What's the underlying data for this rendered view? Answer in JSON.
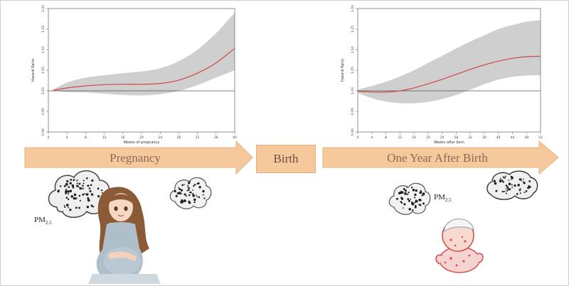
{
  "chart_data": [
    {
      "type": "line",
      "xlabel": "Weeks of pregnancy",
      "ylabel": "Hazard Ratio",
      "xlim": [
        0,
        40
      ],
      "ylim": [
        0.9,
        1.2
      ],
      "x_ticks": [
        "0",
        "4",
        "8",
        "12",
        "16",
        "20",
        "24",
        "28",
        "32",
        "36",
        "40"
      ],
      "y_ticks": [
        "0.90",
        "0.95",
        "1.00",
        "1.05",
        "1.10",
        "1.15",
        "1.20"
      ],
      "reference_line": 1.0,
      "grid": false,
      "line_color": "#d04848",
      "band_color": "#cfcfcf",
      "series": [
        {
          "x": [
            1,
            4,
            8,
            12,
            16,
            20,
            24,
            28,
            32,
            36,
            40
          ],
          "y": [
            1.001,
            1.007,
            1.012,
            1.015,
            1.016,
            1.016,
            1.018,
            1.026,
            1.043,
            1.068,
            1.103
          ],
          "lower": [
            1.0,
            0.997,
            0.996,
            0.993,
            0.99,
            0.989,
            0.992,
            1.0,
            1.014,
            1.032,
            1.05
          ],
          "upper": [
            1.003,
            1.02,
            1.032,
            1.038,
            1.043,
            1.047,
            1.055,
            1.072,
            1.1,
            1.14,
            1.19
          ]
        }
      ]
    },
    {
      "type": "line",
      "xlabel": "Weeks after born",
      "ylabel": "Hazard Ratio",
      "xlim": [
        0,
        52
      ],
      "ylim": [
        0.9,
        1.2
      ],
      "x_ticks": [
        "0",
        "4",
        "8",
        "12",
        "16",
        "20",
        "24",
        "28",
        "32",
        "36",
        "40",
        "44",
        "48",
        "52"
      ],
      "y_ticks": [
        "0.90",
        "0.95",
        "1.00",
        "1.05",
        "1.10",
        "1.15",
        "1.20"
      ],
      "reference_line": 1.0,
      "grid": false,
      "line_color": "#d04848",
      "band_color": "#cfcfcf",
      "series": [
        {
          "x": [
            0,
            4,
            8,
            12,
            16,
            20,
            24,
            28,
            32,
            36,
            40,
            44,
            48,
            52
          ],
          "y": [
            0.999,
            0.997,
            0.997,
            1.0,
            1.007,
            1.017,
            1.028,
            1.04,
            1.052,
            1.063,
            1.072,
            1.079,
            1.083,
            1.084
          ],
          "lower": [
            0.995,
            0.982,
            0.974,
            0.97,
            0.97,
            0.973,
            0.98,
            0.99,
            1.003,
            1.016,
            1.027,
            1.034,
            1.037,
            1.038
          ],
          "upper": [
            1.003,
            1.012,
            1.022,
            1.035,
            1.05,
            1.068,
            1.085,
            1.103,
            1.12,
            1.135,
            1.15,
            1.16,
            1.168,
            1.172
          ]
        }
      ]
    }
  ],
  "timeline": {
    "pregnancy_label": "Pregnancy",
    "birth_label": "Birth",
    "after_birth_label": "One Year After Birth",
    "arrow_color": "#f6c99d",
    "arrow_border": "#e5b27f"
  },
  "pollutant": {
    "main": "PM",
    "sub": "2.5"
  }
}
